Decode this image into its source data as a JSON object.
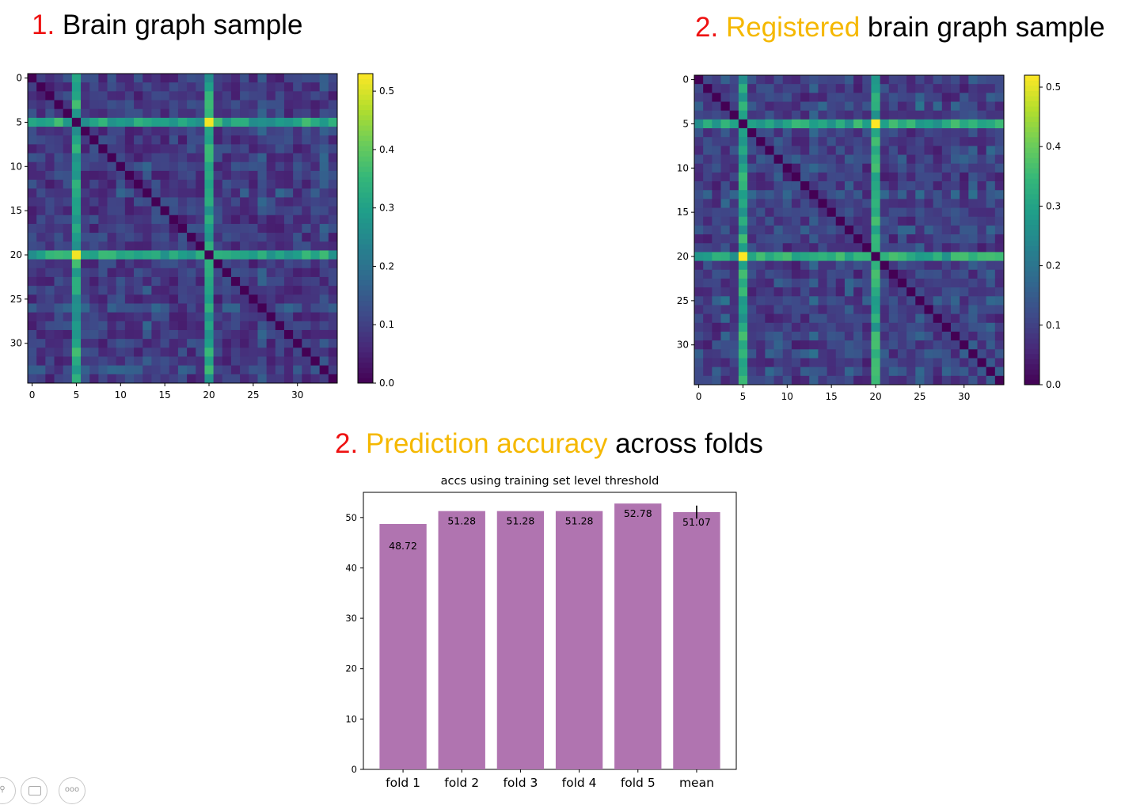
{
  "headings": {
    "h1": {
      "num": "1.",
      "rest": " Brain graph sample"
    },
    "h2": {
      "num": "2.",
      "highlight": "Registered",
      "rest": " brain graph sample"
    },
    "h3": {
      "num": "2.",
      "highlight": "Prediction accuracy",
      "rest": " across folds"
    }
  },
  "colors": {
    "number": "#ee1111",
    "highlight": "#f5b800",
    "bar": "#b074b0",
    "colormap": "viridis"
  },
  "chart_data": [
    {
      "type": "heatmap",
      "title": "",
      "matrix_size": 35,
      "hub_nodes": [
        5,
        20
      ],
      "secondary_nodes": [
        13,
        26,
        33
      ],
      "x_ticks": [
        "0",
        "5",
        "10",
        "15",
        "20",
        "25",
        "30"
      ],
      "y_ticks": [
        "0",
        "5",
        "10",
        "15",
        "20",
        "25",
        "30"
      ],
      "colorbar": {
        "vmin": 0.0,
        "vmax": 0.53,
        "ticks": [
          "0.0",
          "0.1",
          "0.2",
          "0.3",
          "0.4",
          "0.5"
        ]
      }
    },
    {
      "type": "heatmap",
      "title": "",
      "matrix_size": 35,
      "hub_nodes": [
        5,
        20
      ],
      "secondary_nodes": [
        3,
        9,
        13,
        17,
        25,
        31,
        33
      ],
      "x_ticks": [
        "0",
        "5",
        "10",
        "15",
        "20",
        "25",
        "30"
      ],
      "y_ticks": [
        "0",
        "5",
        "10",
        "15",
        "20",
        "25",
        "30"
      ],
      "colorbar": {
        "vmin": 0.0,
        "vmax": 0.52,
        "ticks": [
          "0.0",
          "0.1",
          "0.2",
          "0.3",
          "0.4",
          "0.5"
        ]
      }
    },
    {
      "type": "bar",
      "title": "accs using training set level threshold",
      "xlabel": "",
      "ylabel": "",
      "categories": [
        "fold 1",
        "fold 2",
        "fold 3",
        "fold 4",
        "fold 5",
        "mean"
      ],
      "values": [
        48.72,
        51.28,
        51.28,
        51.28,
        52.78,
        51.07
      ],
      "labels": [
        "48.72",
        "51.28",
        "51.28",
        "51.28",
        "52.78",
        "51.07"
      ],
      "error": [
        0,
        0,
        0,
        0,
        0,
        1.3
      ],
      "ylim": [
        0,
        55
      ],
      "y_ticks": [
        "0",
        "10",
        "20",
        "30",
        "40",
        "50"
      ]
    }
  ],
  "controls": {
    "more_icon": "more-icon",
    "more_label": "ooo"
  }
}
